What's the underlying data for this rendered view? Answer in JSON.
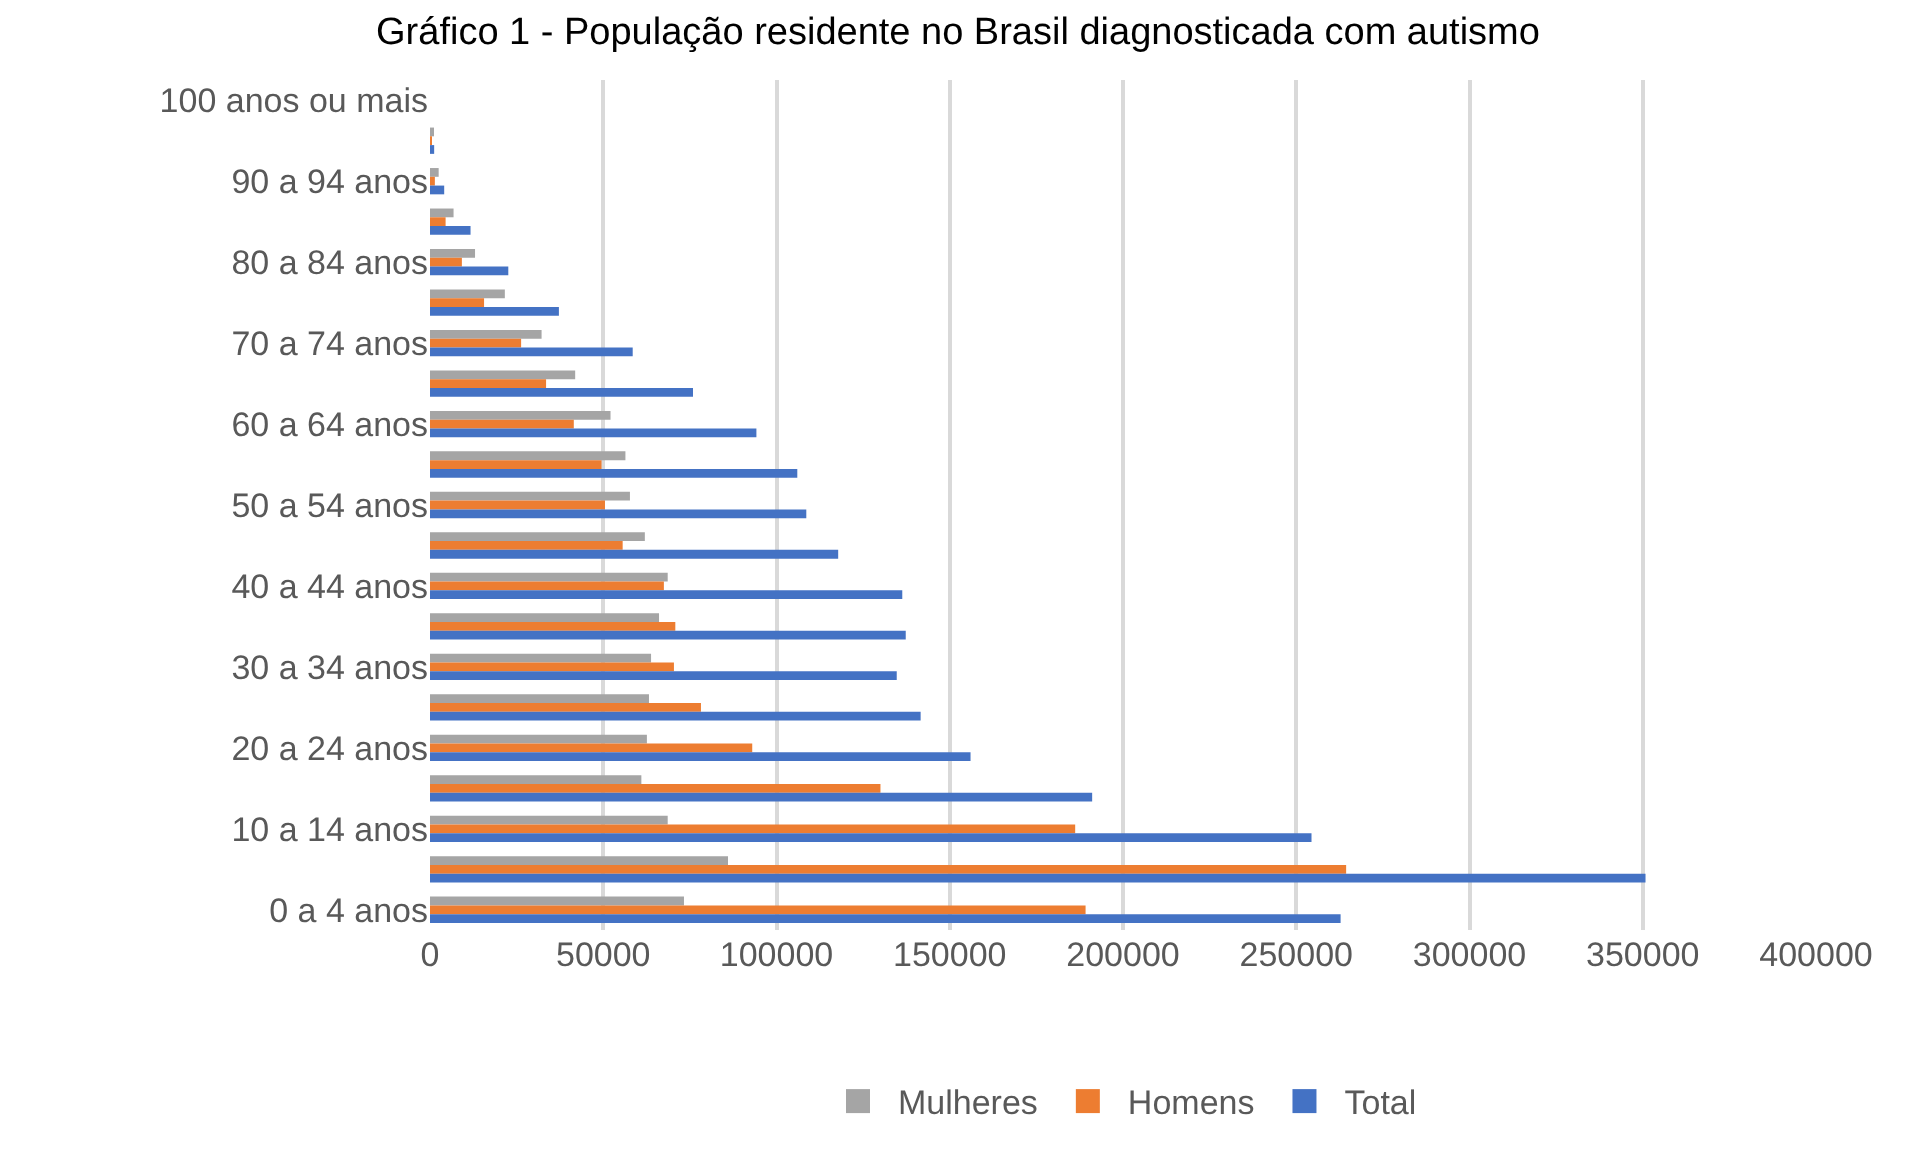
{
  "chart_data": {
    "type": "bar",
    "orientation": "horizontal",
    "title": "Gráfico 1 - População residente no Brasil diagnosticada com autismo",
    "categories": [
      "100 anos ou mais",
      null,
      "90 a 94 anos",
      null,
      "80 a 84 anos",
      null,
      "70 a 74 anos",
      null,
      "60 a 64 anos",
      null,
      "50 a 54 anos",
      null,
      "40 a 44 anos",
      null,
      "30 a 34 anos",
      null,
      "20 a 24 anos",
      null,
      "10 a 14 anos",
      null,
      "0 a 4 anos"
    ],
    "series": [
      {
        "name": "Mulheres",
        "color": "#a5a5a5",
        "values": [
          null,
          1000,
          2500,
          6800,
          13000,
          21600,
          32200,
          41900,
          52100,
          56400,
          57700,
          62000,
          68600,
          66100,
          63800,
          63200,
          62600,
          61000,
          68600,
          86000,
          73300
        ]
      },
      {
        "name": "Homens",
        "color": "#ed7d31",
        "values": [
          null,
          500,
          1400,
          4500,
          9200,
          15600,
          26300,
          33500,
          41500,
          49500,
          50500,
          55600,
          67500,
          70800,
          70400,
          78200,
          93000,
          130000,
          186200,
          264400,
          189200
        ]
      },
      {
        "name": "Total",
        "color": "#4472c4",
        "values": [
          null,
          1200,
          4100,
          11700,
          22600,
          37200,
          58500,
          75900,
          94200,
          106000,
          108600,
          117800,
          136300,
          137300,
          134700,
          141600,
          156000,
          191100,
          254400,
          350800,
          262800
        ]
      }
    ],
    "xlim": [
      0,
      400000
    ],
    "xticks": [
      0,
      50000,
      100000,
      150000,
      200000,
      250000,
      300000,
      350000,
      400000
    ],
    "grid": "x",
    "legend": "bottom"
  }
}
